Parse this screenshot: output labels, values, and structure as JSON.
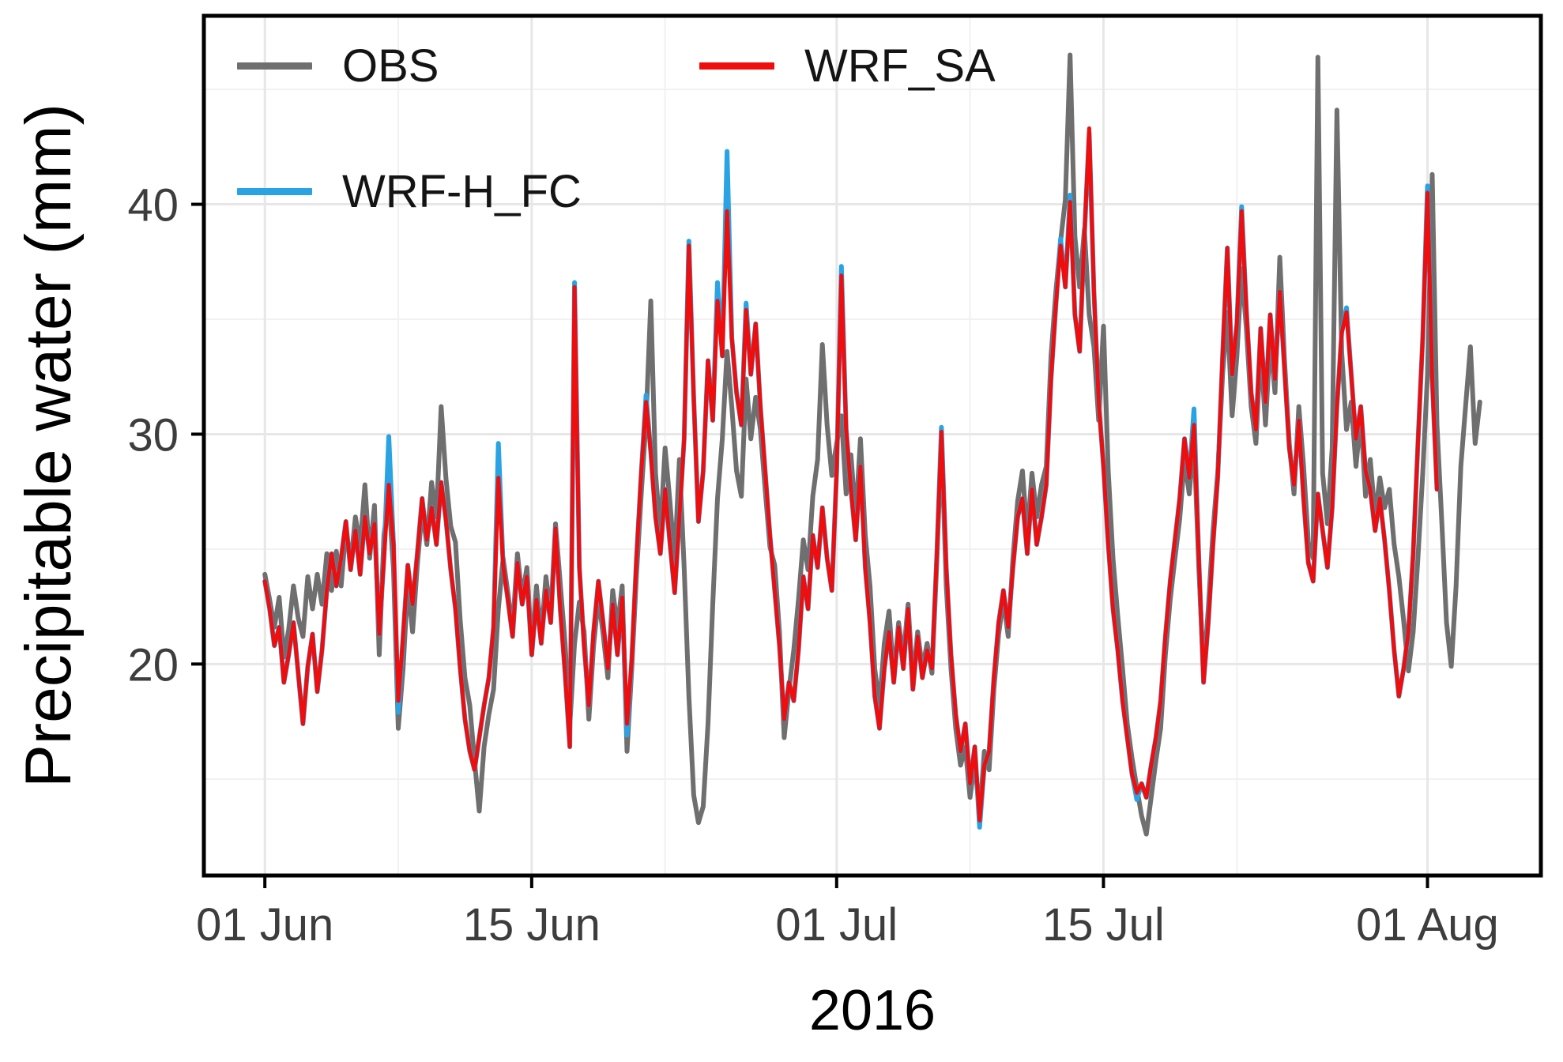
{
  "figure": {
    "background": "#FFFFFF"
  },
  "chart_data": {
    "type": "line",
    "xlabel": "2016",
    "ylabel": "Precipitable water (mm)",
    "x_unit": "days since 01 Jun 2016 00:00 (values 6-hourly, dt = 0.25 day)",
    "x_domain": [
      -3.2,
      66.95
    ],
    "y_domain": [
      10.8,
      48.2
    ],
    "x_ticks": [
      {
        "t": 0,
        "label": "01 Jun"
      },
      {
        "t": 14,
        "label": "15 Jun"
      },
      {
        "t": 30,
        "label": "01 Jul"
      },
      {
        "t": 44,
        "label": "15 Jul"
      },
      {
        "t": 61,
        "label": "01 Aug"
      }
    ],
    "x_minor": [
      7,
      21,
      37,
      51
    ],
    "y_ticks": [
      {
        "v": 20,
        "label": "20"
      },
      {
        "v": 30,
        "label": "30"
      },
      {
        "v": 40,
        "label": "40"
      }
    ],
    "y_minor": [
      15,
      25,
      35,
      45
    ],
    "grid": {
      "major_color": "#E7E7E7",
      "minor_color": "#F1F1F1",
      "panel_border": "#000000"
    },
    "legend": {
      "position": "top-left-inside",
      "order": [
        "OBS",
        "WRF_SA",
        "WRF-H_FC"
      ]
    },
    "series": [
      {
        "name": "OBS",
        "color": "#6F6F6F",
        "stroke_width": 6,
        "t0": 0,
        "dt": 0.25,
        "values": [
          23.9,
          22.8,
          21.6,
          22.9,
          20.3,
          21.5,
          23.4,
          22.0,
          21.2,
          23.8,
          22.4,
          23.9,
          22.6,
          24.8,
          23.2,
          24.9,
          23.4,
          25.9,
          24.3,
          26.4,
          25.1,
          27.8,
          24.6,
          26.9,
          20.4,
          25.6,
          27.3,
          24.1,
          17.2,
          19.8,
          23.5,
          21.4,
          24.3,
          26.7,
          25.2,
          27.9,
          26.4,
          31.2,
          28.1,
          26.0,
          25.3,
          21.9,
          19.4,
          18.2,
          15.8,
          13.6,
          16.4,
          17.8,
          18.9,
          22.4,
          24.6,
          23.1,
          21.5,
          24.8,
          22.9,
          24.2,
          20.6,
          23.4,
          21.2,
          23.8,
          22.1,
          26.1,
          23.5,
          20.9,
          17.3,
          20.9,
          22.7,
          21.4,
          17.6,
          20.8,
          22.9,
          21.3,
          19.4,
          23.2,
          21.6,
          23.4,
          16.2,
          19.8,
          23.9,
          27.4,
          30.6,
          35.8,
          28.3,
          25.7,
          29.4,
          27.1,
          24.5,
          28.9,
          24.2,
          18.6,
          14.3,
          13.1,
          13.8,
          17.4,
          22.6,
          27.2,
          29.8,
          33.6,
          31.2,
          28.4,
          27.3,
          32.4,
          29.8,
          31.6,
          30.2,
          27.6,
          25.1,
          24.3,
          21.4,
          16.8,
          18.9,
          20.6,
          22.8,
          25.4,
          24.1,
          27.3,
          28.9,
          33.9,
          30.4,
          28.2,
          29.6,
          30.8,
          27.4,
          29.1,
          26.3,
          29.8,
          25.6,
          23.4,
          19.8,
          18.2,
          20.9,
          22.3,
          19.4,
          21.8,
          20.3,
          22.6,
          19.2,
          21.4,
          19.8,
          20.9,
          19.6,
          24.3,
          29.9,
          23.4,
          19.8,
          17.2,
          15.6,
          16.4,
          14.2,
          15.8,
          13.4,
          16.2,
          15.4,
          18.9,
          21.3,
          22.8,
          21.2,
          24.6,
          27.1,
          28.4,
          25.6,
          28.3,
          26.4,
          27.8,
          28.6,
          33.4,
          36.2,
          38.4,
          40.2,
          46.5,
          38.6,
          36.4,
          38.9,
          35.2,
          33.8,
          30.6,
          34.7,
          28.4,
          24.6,
          22.1,
          19.8,
          17.4,
          15.9,
          14.6,
          13.4,
          12.6,
          14.2,
          15.8,
          17.2,
          20.4,
          22.8,
          24.6,
          26.3,
          28.9,
          27.4,
          29.8,
          24.2,
          19.6,
          22.4,
          25.8,
          28.4,
          32.6,
          35.3,
          30.8,
          33.4,
          37.2,
          34.6,
          31.2,
          29.6,
          33.8,
          30.4,
          34.2,
          31.8,
          37.7,
          33.2,
          29.6,
          27.4,
          31.2,
          28.6,
          25.3,
          24.6,
          46.4,
          28.3,
          26.1,
          29.4,
          44.1,
          33.6,
          30.2,
          31.4,
          28.6,
          30.8,
          27.3,
          28.9,
          26.4,
          28.1,
          26.8,
          27.6,
          25.2,
          23.8,
          21.9,
          19.7,
          21.4,
          24.6,
          28.3,
          32.6,
          41.3,
          30.4,
          26.2,
          21.8,
          19.9,
          23.4,
          28.6,
          31.2,
          33.8,
          29.6,
          31.4
        ]
      },
      {
        "name": "WRF-H_FC",
        "color": "#29A3E3",
        "stroke_width": 6,
        "t0": 0,
        "dt": 0.25,
        "values": [
          23.6,
          22.4,
          20.8,
          21.6,
          19.2,
          20.4,
          21.8,
          19.6,
          17.4,
          19.9,
          21.3,
          18.8,
          20.6,
          23.2,
          24.8,
          23.4,
          24.6,
          26.2,
          24.1,
          25.8,
          23.9,
          26.4,
          24.8,
          26.1,
          21.3,
          24.6,
          29.9,
          25.2,
          17.9,
          21.2,
          24.3,
          22.6,
          24.8,
          27.2,
          25.4,
          26.8,
          25.2,
          27.9,
          26.3,
          24.1,
          22.4,
          19.8,
          17.6,
          16.2,
          15.4,
          16.8,
          18.2,
          19.4,
          21.6,
          29.6,
          24.3,
          22.8,
          21.2,
          24.4,
          22.6,
          23.8,
          20.4,
          22.8,
          20.9,
          23.2,
          21.8,
          25.9,
          22.4,
          19.6,
          16.4,
          36.6,
          24.2,
          20.8,
          18.2,
          21.4,
          23.6,
          21.8,
          19.8,
          22.6,
          20.4,
          22.9,
          16.9,
          20.2,
          24.6,
          28.3,
          31.7,
          29.2,
          26.4,
          24.8,
          27.6,
          25.3,
          23.1,
          26.4,
          29.8,
          38.4,
          31.6,
          26.2,
          28.4,
          33.2,
          30.6,
          36.6,
          33.4,
          42.3,
          34.2,
          31.8,
          30.4,
          35.7,
          32.6,
          34.8,
          31.2,
          28.4,
          25.6,
          23.2,
          20.8,
          17.6,
          19.2,
          18.4,
          20.6,
          23.8,
          22.4,
          25.6,
          24.2,
          26.8,
          24.6,
          23.2,
          28.4,
          37.3,
          30.2,
          27.6,
          25.4,
          28.6,
          24.2,
          21.8,
          18.6,
          17.2,
          19.8,
          21.4,
          19.2,
          21.6,
          19.8,
          22.4,
          18.9,
          21.2,
          19.4,
          20.6,
          19.8,
          24.6,
          30.3,
          24.2,
          20.4,
          17.8,
          16.2,
          17.4,
          14.8,
          16.4,
          12.9,
          15.6,
          16.2,
          19.4,
          21.8,
          23.2,
          21.6,
          24.2,
          26.4,
          27.2,
          24.8,
          27.6,
          25.2,
          26.4,
          27.8,
          32.4,
          35.6,
          38.5,
          36.4,
          40.4,
          35.2,
          33.6,
          38.6,
          43.1,
          36.2,
          31.4,
          28.6,
          25.2,
          22.4,
          20.6,
          18.4,
          16.8,
          15.2,
          14.1,
          14.8,
          14.2,
          15.6,
          16.8,
          18.4,
          21.2,
          23.6,
          25.4,
          27.2,
          29.8,
          28.1,
          31.1,
          24.6,
          19.2,
          21.8,
          25.2,
          28.2,
          33.4,
          38.1,
          32.6,
          34.8,
          39.9,
          35.4,
          31.8,
          30.2,
          34.6,
          31.4,
          35.2,
          32.4,
          36.2,
          32.8,
          29.4,
          27.8,
          30.6,
          27.2,
          24.4,
          23.6,
          27.4,
          25.8,
          24.2,
          26.8,
          31.2,
          34.4,
          35.5,
          32.6,
          29.8,
          31.2,
          28.4,
          27.6,
          25.8,
          27.2,
          25.4,
          23.2,
          20.6,
          18.6,
          19.8,
          21.4,
          24.8,
          29.6,
          34.2,
          40.8,
          32.4,
          27.6
        ]
      },
      {
        "name": "WRF_SA",
        "color": "#EE0E0E",
        "stroke_width": 5,
        "t0": 0,
        "dt": 0.25,
        "values": [
          23.6,
          22.4,
          20.8,
          21.6,
          19.2,
          20.4,
          21.8,
          19.6,
          17.4,
          19.9,
          21.3,
          18.8,
          20.6,
          23.2,
          24.8,
          23.4,
          24.6,
          26.2,
          24.1,
          25.8,
          23.9,
          26.4,
          24.8,
          26.1,
          21.3,
          24.6,
          27.8,
          25.2,
          18.4,
          21.2,
          24.3,
          22.6,
          24.8,
          27.2,
          25.4,
          26.8,
          25.2,
          27.9,
          26.3,
          24.1,
          22.4,
          19.8,
          17.6,
          16.2,
          15.4,
          16.8,
          18.2,
          19.4,
          21.6,
          28.1,
          24.3,
          22.8,
          21.2,
          24.4,
          22.6,
          23.8,
          20.4,
          22.8,
          20.9,
          23.2,
          21.8,
          25.9,
          22.4,
          19.6,
          16.4,
          36.4,
          24.2,
          20.8,
          18.2,
          21.4,
          23.6,
          21.8,
          19.8,
          22.6,
          20.4,
          22.9,
          17.4,
          20.2,
          24.6,
          28.3,
          31.4,
          29.2,
          26.4,
          24.8,
          27.6,
          25.3,
          23.1,
          26.4,
          29.8,
          38.2,
          31.6,
          26.2,
          28.4,
          33.2,
          30.6,
          35.8,
          33.4,
          39.7,
          34.2,
          31.8,
          30.4,
          35.4,
          32.6,
          34.8,
          31.2,
          28.4,
          25.6,
          23.2,
          20.8,
          17.6,
          19.2,
          18.4,
          20.6,
          23.8,
          22.4,
          25.6,
          24.2,
          26.8,
          24.6,
          23.2,
          28.4,
          36.9,
          30.2,
          27.6,
          25.4,
          28.6,
          24.2,
          21.8,
          18.6,
          17.2,
          19.8,
          21.4,
          19.2,
          21.6,
          19.8,
          22.4,
          18.9,
          21.2,
          19.4,
          20.6,
          19.8,
          24.6,
          30.1,
          24.2,
          20.4,
          17.8,
          16.2,
          17.4,
          14.8,
          16.4,
          13.2,
          15.6,
          16.2,
          19.4,
          21.8,
          23.2,
          21.6,
          24.2,
          26.4,
          27.2,
          24.8,
          27.6,
          25.2,
          26.4,
          27.8,
          32.4,
          35.6,
          38.2,
          36.4,
          40.1,
          35.2,
          33.6,
          38.6,
          43.3,
          36.2,
          31.4,
          28.6,
          25.2,
          22.4,
          20.6,
          18.4,
          16.8,
          15.2,
          14.4,
          14.8,
          14.2,
          15.6,
          16.8,
          18.4,
          21.2,
          23.6,
          25.4,
          27.2,
          29.8,
          28.1,
          30.4,
          24.6,
          19.2,
          21.8,
          25.2,
          28.2,
          33.4,
          38.1,
          32.6,
          34.8,
          39.7,
          35.4,
          31.8,
          30.2,
          34.6,
          31.4,
          35.2,
          32.4,
          36.2,
          32.8,
          29.4,
          27.8,
          30.6,
          27.2,
          24.4,
          23.6,
          27.4,
          25.8,
          24.2,
          26.8,
          31.2,
          34.4,
          35.3,
          32.6,
          29.8,
          31.2,
          28.4,
          27.6,
          25.8,
          27.2,
          25.4,
          23.2,
          20.6,
          18.6,
          19.8,
          21.4,
          24.8,
          29.6,
          34.2,
          40.5,
          32.4,
          27.6
        ]
      }
    ]
  }
}
